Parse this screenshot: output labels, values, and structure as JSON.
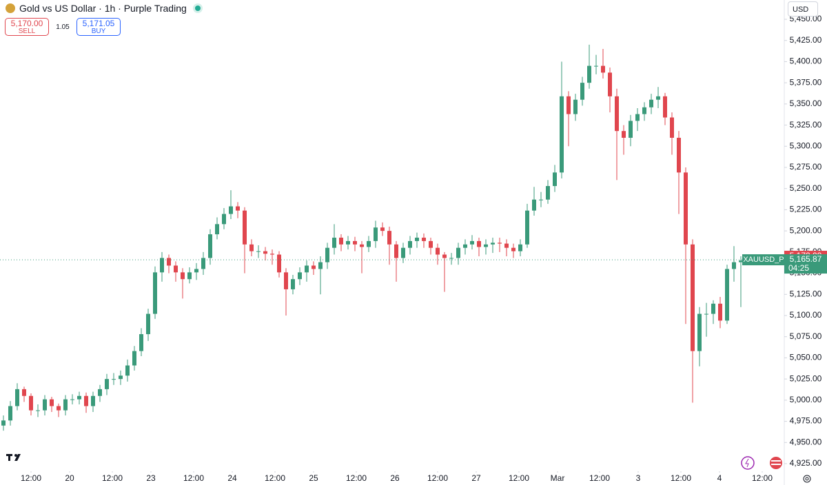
{
  "header": {
    "title": "Gold vs US Dollar · 1h · Purple Trading",
    "sell_price": "5,170.00",
    "sell_label": "SELL",
    "spread": "1.05",
    "buy_price": "5,171.05",
    "buy_label": "BUY",
    "currency": "USD"
  },
  "chart_data": {
    "type": "candlestick",
    "up_color": "#3a9a7a",
    "down_color": "#e0464e",
    "open": [
      4970,
      4976,
      4993,
      5013,
      5005,
      4988,
      4988,
      5001,
      4993,
      4988,
      5001,
      5001,
      5005,
      4993,
      5005,
      5013,
      5025,
      5025,
      5029,
      5041,
      5058,
      5078,
      5102,
      5151,
      5168,
      5159,
      5151,
      5143,
      5151,
      5155,
      5168,
      5196,
      5208,
      5220,
      5229,
      5224,
      5184,
      5176,
      5176,
      5173,
      5172,
      5151,
      5131,
      5143,
      5151,
      5159,
      5155,
      5163,
      5180,
      5192,
      5184,
      5188,
      5184,
      5181,
      5188,
      5204,
      5200,
      5184,
      5168,
      5180,
      5188,
      5192,
      5188,
      5180,
      5172,
      5168,
      5168,
      5180,
      5184,
      5188,
      5181,
      5184,
      5186,
      5185,
      5180,
      5176,
      5184,
      5224,
      5237,
      5237,
      5253,
      5269,
      5359,
      5338,
      5355,
      5375,
      5395,
      5395,
      5387,
      5359,
      5318,
      5310,
      5330,
      5338,
      5346,
      5355,
      5359,
      5334,
      5310,
      5269,
      5184,
      5058,
      5102,
      5102,
      5114,
      5094,
      5155,
      5163
    ],
    "high": [
      4982,
      4999,
      5020,
      5016,
      5008,
      4995,
      5006,
      5004,
      4996,
      5006,
      5007,
      5010,
      5009,
      5010,
      5018,
      5031,
      5032,
      5035,
      5048,
      5064,
      5085,
      5108,
      5158,
      5175,
      5172,
      5164,
      5156,
      5157,
      5162,
      5175,
      5202,
      5216,
      5227,
      5248,
      5234,
      5228,
      5190,
      5183,
      5181,
      5178,
      5176,
      5156,
      5148,
      5157,
      5165,
      5164,
      5170,
      5186,
      5208,
      5196,
      5194,
      5193,
      5188,
      5194,
      5212,
      5210,
      5205,
      5188,
      5186,
      5194,
      5198,
      5197,
      5192,
      5185,
      5175,
      5174,
      5186,
      5190,
      5195,
      5192,
      5190,
      5192,
      5192,
      5190,
      5185,
      5190,
      5232,
      5252,
      5246,
      5260,
      5278,
      5400,
      5365,
      5362,
      5382,
      5420,
      5408,
      5415,
      5393,
      5368,
      5325,
      5337,
      5345,
      5352,
      5362,
      5370,
      5363,
      5340,
      5318,
      5275,
      5190,
      5110,
      5115,
      5118,
      5122,
      5160,
      5182,
      5170
    ],
    "low": [
      4964,
      4970,
      4988,
      4998,
      4982,
      4980,
      4982,
      4986,
      4980,
      4982,
      4995,
      4995,
      4985,
      4986,
      4998,
      5006,
      5018,
      5018,
      5022,
      5035,
      5052,
      5070,
      5096,
      5140,
      5150,
      5140,
      5120,
      5138,
      5142,
      5148,
      5160,
      5190,
      5202,
      5214,
      5215,
      5150,
      5170,
      5168,
      5165,
      5160,
      5145,
      5100,
      5125,
      5136,
      5140,
      5148,
      5125,
      5155,
      5172,
      5176,
      5178,
      5176,
      5150,
      5175,
      5180,
      5194,
      5160,
      5140,
      5162,
      5172,
      5180,
      5180,
      5172,
      5160,
      5128,
      5160,
      5160,
      5172,
      5178,
      5170,
      5172,
      5174,
      5175,
      5170,
      5168,
      5170,
      5180,
      5218,
      5228,
      5232,
      5246,
      5262,
      5300,
      5330,
      5348,
      5368,
      5385,
      5380,
      5340,
      5260,
      5290,
      5300,
      5318,
      5330,
      5338,
      5345,
      5325,
      5290,
      5220,
      5090,
      4997,
      5040,
      5075,
      5090,
      5085,
      5090,
      5140,
      5110
    ],
    "close": [
      4976,
      4993,
      5013,
      5005,
      4988,
      4988,
      5001,
      4993,
      4988,
      5001,
      5001,
      5005,
      4993,
      5005,
      5013,
      5025,
      5025,
      5029,
      5041,
      5058,
      5078,
      5102,
      5151,
      5168,
      5159,
      5151,
      5143,
      5151,
      5155,
      5168,
      5196,
      5208,
      5220,
      5229,
      5224,
      5184,
      5176,
      5176,
      5173,
      5172,
      5151,
      5131,
      5143,
      5151,
      5159,
      5155,
      5163,
      5180,
      5192,
      5184,
      5188,
      5184,
      5181,
      5188,
      5204,
      5200,
      5184,
      5168,
      5180,
      5188,
      5192,
      5188,
      5180,
      5172,
      5168,
      5168,
      5180,
      5184,
      5188,
      5181,
      5184,
      5186,
      5185,
      5180,
      5176,
      5184,
      5224,
      5237,
      5237,
      5253,
      5269,
      5359,
      5338,
      5355,
      5375,
      5395,
      5395,
      5387,
      5359,
      5318,
      5310,
      5330,
      5338,
      5346,
      5355,
      5359,
      5334,
      5310,
      5269,
      5184,
      5058,
      5102,
      5102,
      5114,
      5094,
      5155,
      5163,
      5165
    ],
    "xlim": [
      -0.5,
      113.3
    ],
    "xticks": [
      {
        "value": 4.0,
        "label": "12:00"
      },
      {
        "value": 9.6,
        "label": "20"
      },
      {
        "value": 15.8,
        "label": "12:00"
      },
      {
        "value": 21.4,
        "label": "23"
      },
      {
        "value": 27.6,
        "label": "12:00"
      },
      {
        "value": 33.2,
        "label": "24"
      },
      {
        "value": 39.4,
        "label": "12:00"
      },
      {
        "value": 45.0,
        "label": "25"
      },
      {
        "value": 51.2,
        "label": "12:00"
      },
      {
        "value": 56.8,
        "label": "26"
      },
      {
        "value": 63.0,
        "label": "12:00"
      },
      {
        "value": 68.6,
        "label": "27"
      },
      {
        "value": 74.8,
        "label": "12:00"
      },
      {
        "value": 80.4,
        "label": "Mar"
      },
      {
        "value": 86.5,
        "label": "12:00"
      },
      {
        "value": 92.1,
        "label": "3"
      },
      {
        "value": 98.3,
        "label": "12:00"
      },
      {
        "value": 103.9,
        "label": "4"
      },
      {
        "value": 110.1,
        "label": "12:00"
      }
    ],
    "ylim": [
      4919.3,
      5472.8
    ],
    "yticks": [
      {
        "value": 5450,
        "label": "5,450.00"
      },
      {
        "value": 5425,
        "label": "5,425.00"
      },
      {
        "value": 5400,
        "label": "5,400.00"
      },
      {
        "value": 5375,
        "label": "5,375.00"
      },
      {
        "value": 5350,
        "label": "5,350.00"
      },
      {
        "value": 5325,
        "label": "5,325.00"
      },
      {
        "value": 5300,
        "label": "5,300.00"
      },
      {
        "value": 5275,
        "label": "5,275.00"
      },
      {
        "value": 5250,
        "label": "5,250.00"
      },
      {
        "value": 5225,
        "label": "5,225.00"
      },
      {
        "value": 5200,
        "label": "5,200.00"
      },
      {
        "value": 5175,
        "label": "5,175.00"
      },
      {
        "value": 5150,
        "label": "5,150.00"
      },
      {
        "value": 5125,
        "label": "5,125.00"
      },
      {
        "value": 5100,
        "label": "5,100.00"
      },
      {
        "value": 5075,
        "label": "5,075.00"
      },
      {
        "value": 5050,
        "label": "5,050.00"
      },
      {
        "value": 5025,
        "label": "5,025.00"
      },
      {
        "value": 5000,
        "label": "5,000.00"
      },
      {
        "value": 4975,
        "label": "4,975.00"
      },
      {
        "value": 4950,
        "label": "4,950.00"
      },
      {
        "value": 4925,
        "label": "4,925.00"
      }
    ],
    "ask_price": {
      "value": 5170,
      "label": "5,170.00"
    },
    "symbol_label": "XAUUSD_P",
    "last_price": {
      "value": 5165.87,
      "label": "5,165.87"
    },
    "countdown": "04:25"
  }
}
